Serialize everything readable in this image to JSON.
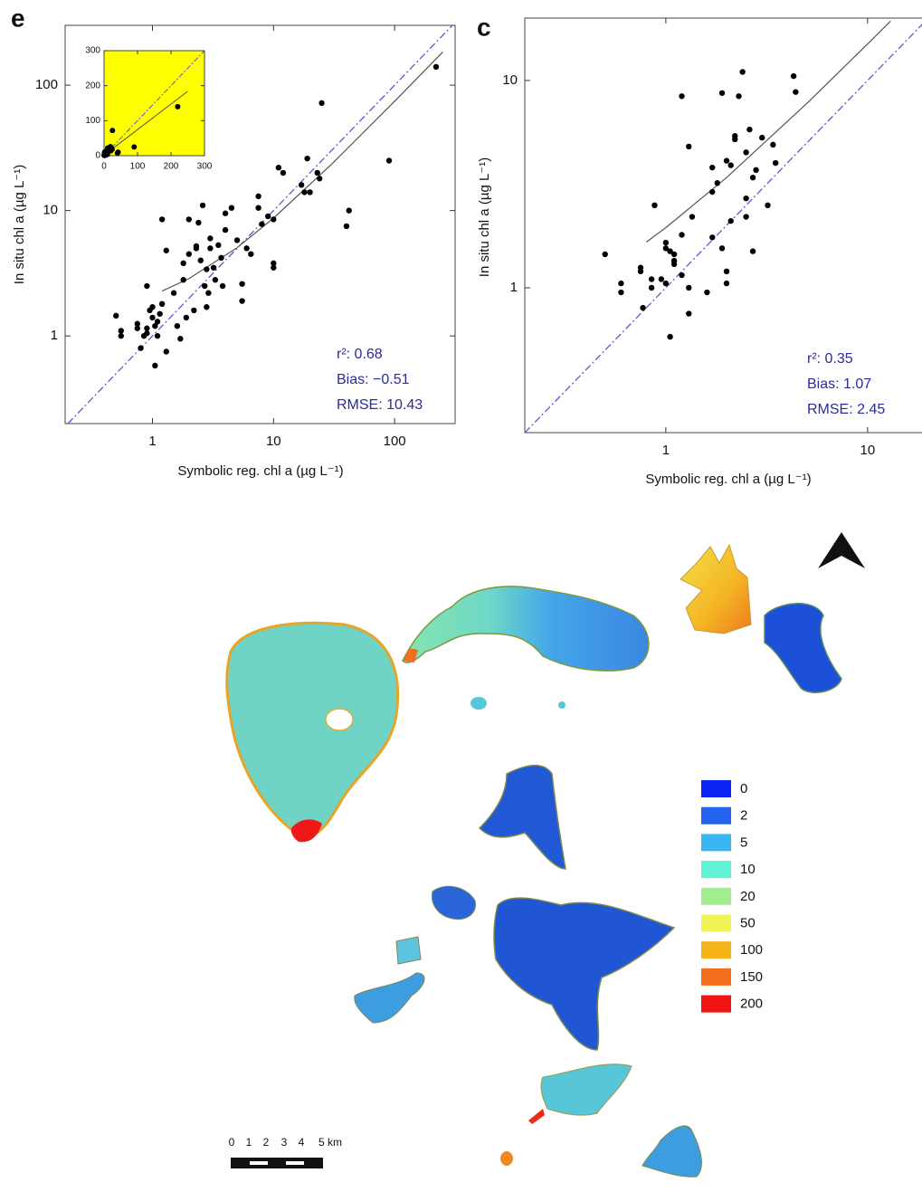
{
  "chart_data": [
    {
      "type": "scatter",
      "panel_label": "e",
      "x_label": "Symbolic reg. chl a (µg L⁻¹)",
      "y_label": "In situ chl a (µg L⁻¹)",
      "log_x": true,
      "log_y": true,
      "grid": false,
      "color": "#000000",
      "xlim": [
        0.19,
        316
      ],
      "ylim": [
        0.2,
        300
      ],
      "xticks": [
        1,
        10,
        100
      ],
      "yticks": [
        1,
        10,
        100
      ],
      "x": [
        0.5,
        0.55,
        0.55,
        0.75,
        0.75,
        0.8,
        0.85,
        0.9,
        0.9,
        0.95,
        1.0,
        1.0,
        1.05,
        1.05,
        1.1,
        1.1,
        1.15,
        0.9,
        1.2,
        1.2,
        1.3,
        1.3,
        1.5,
        1.6,
        1.7,
        1.8,
        1.8,
        1.9,
        2,
        2,
        2.2,
        2.3,
        2.3,
        2.4,
        2.5,
        2.6,
        2.7,
        2.8,
        2.8,
        2.9,
        3.0,
        3.0,
        3.2,
        3.3,
        3.5,
        3.7,
        3.8,
        4,
        4,
        4.5,
        5,
        5.5,
        5.5,
        6,
        6.5,
        7.5,
        7.5,
        8,
        9,
        10,
        10,
        10,
        11,
        12,
        17,
        18,
        19,
        20,
        23,
        24,
        25,
        40,
        42,
        90,
        220
      ],
      "values": [
        1.45,
        1.0,
        1.1,
        1.25,
        1.15,
        0.8,
        1.0,
        1.05,
        1.15,
        1.6,
        1.7,
        1.4,
        0.58,
        1.2,
        1.3,
        1.0,
        1.5,
        2.5,
        1.8,
        8.5,
        4.8,
        0.75,
        2.2,
        1.2,
        0.95,
        2.8,
        3.8,
        1.4,
        8.5,
        4.5,
        1.6,
        5.2,
        5.0,
        8.0,
        4.0,
        11,
        2.5,
        1.7,
        3.4,
        2.2,
        6.0,
        5.0,
        3.5,
        2.8,
        5.3,
        4.2,
        2.5,
        9.5,
        7,
        10.5,
        5.8,
        1.9,
        2.6,
        5,
        4.5,
        10.5,
        13,
        7.8,
        9,
        8.5,
        3.5,
        3.8,
        22,
        20,
        16,
        14,
        26,
        14,
        20,
        18,
        72,
        7.5,
        10,
        25,
        140
      ],
      "one_to_one_color": "#5a5ad2",
      "fit_color": "#555555",
      "fit": {
        "x": [
          1.2,
          2,
          5,
          10,
          30,
          100,
          250
        ],
        "y": [
          2.28,
          2.86,
          5.05,
          8.7,
          23.3,
          74.4,
          183.9
        ]
      },
      "stats_color": "#2b2b9c",
      "stats": [
        "r²: 0.68",
        "Bias: −0.51",
        "RMSE: 10.43"
      ],
      "inset": {
        "xlim": [
          0,
          300
        ],
        "ylim": [
          0,
          300
        ],
        "xticks": [
          0,
          100,
          200,
          300
        ],
        "yticks": [
          0,
          100,
          200,
          300
        ],
        "background": "#ffff00"
      }
    },
    {
      "type": "scatter",
      "panel_label": "c",
      "x_label": "Symbolic reg. chl a (µg L⁻¹)",
      "y_label": "In situ chl a (µg L⁻¹)",
      "log_x": true,
      "log_y": true,
      "grid": false,
      "color": "#000000",
      "xlim": [
        0.2,
        20
      ],
      "ylim": [
        0.2,
        20
      ],
      "xticks": [
        1,
        10
      ],
      "yticks": [
        1,
        10
      ],
      "x": [
        0.5,
        0.6,
        0.6,
        0.75,
        0.75,
        0.77,
        0.85,
        0.85,
        0.88,
        0.95,
        1.0,
        1.0,
        1.0,
        1.05,
        1.05,
        1.1,
        1.1,
        1.1,
        1.2,
        1.2,
        1.2,
        1.3,
        1.3,
        1.3,
        1.35,
        1.6,
        1.7,
        1.7,
        1.7,
        1.8,
        1.9,
        1.9,
        2,
        2,
        2,
        2.1,
        2.1,
        2.2,
        2.2,
        2.3,
        2.4,
        2.5,
        2.5,
        2.5,
        2.6,
        2.7,
        2.7,
        2.8,
        3.0,
        3.2,
        3.4,
        3.5,
        4.3,
        4.4
      ],
      "values": [
        1.45,
        1.05,
        0.95,
        1.25,
        1.2,
        0.8,
        1.1,
        1.0,
        2.5,
        1.1,
        1.65,
        1.55,
        1.05,
        0.58,
        1.5,
        1.3,
        1.45,
        1.35,
        1.8,
        1.15,
        8.4,
        4.8,
        0.75,
        1.0,
        2.2,
        0.95,
        3.8,
        2.9,
        1.75,
        3.2,
        1.55,
        8.7,
        4.1,
        1.2,
        1.05,
        2.1,
        3.9,
        5.2,
        5.4,
        8.4,
        11,
        4.5,
        2.7,
        2.2,
        5.8,
        1.5,
        3.4,
        3.7,
        5.3,
        2.5,
        4.9,
        4.0,
        10.5,
        8.8
      ],
      "one_to_one_color": "#5a5ad2",
      "fit_color": "#555555",
      "fit": {
        "x": [
          0.8,
          1,
          2,
          5,
          10,
          13
        ],
        "y": [
          1.66,
          1.95,
          3.4,
          7.75,
          15,
          19.35
        ]
      },
      "stats_color": "#2b2b9c",
      "stats": [
        "r²: 0.35",
        "Bias: 1.07",
        "RMSE: 2.45"
      ]
    }
  ],
  "map": {
    "legend": {
      "labels": [
        "0",
        "2",
        "5",
        "10",
        "20",
        "50",
        "100",
        "150",
        "200"
      ],
      "colors": [
        "#0a22f2",
        "#2264ee",
        "#3cb6f2",
        "#62f2d4",
        "#a2ee8e",
        "#eef454",
        "#f4b418",
        "#f46e1e",
        "#f01414"
      ]
    },
    "scale_bar": {
      "labels": [
        "0",
        "1",
        "2",
        "3",
        "4",
        "5 km"
      ]
    }
  }
}
